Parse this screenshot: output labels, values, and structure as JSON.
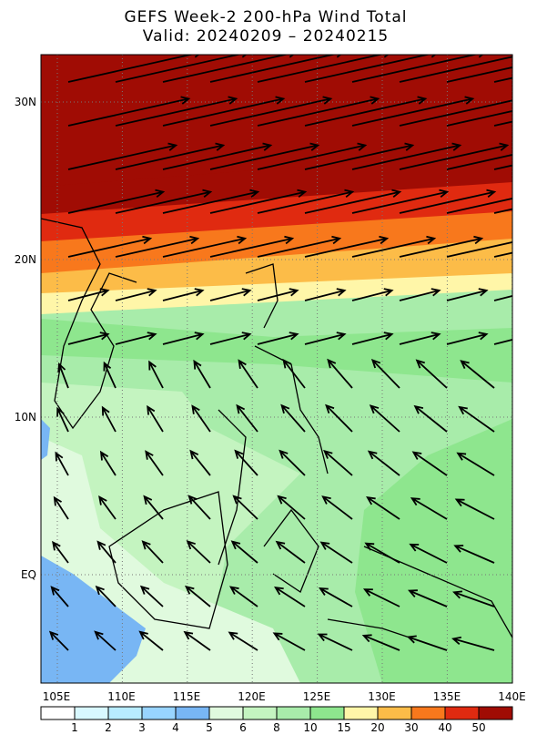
{
  "title": "GEFS Week-2 200-hPa Wind Total",
  "subtitle": "Valid: 20240209 – 20240215",
  "map": {
    "lat_labels": [
      "30N",
      "20N",
      "10N",
      "EQ"
    ],
    "lon_labels": [
      "105E",
      "110E",
      "115E",
      "120E",
      "125E",
      "130E",
      "135E",
      "140E"
    ]
  },
  "colorbar": {
    "labels": [
      1,
      2,
      3,
      4,
      5,
      6,
      8,
      10,
      15,
      20,
      30,
      40,
      50
    ],
    "colors": [
      "#ffffff",
      "#d8f8ff",
      "#b8ecff",
      "#98d4ff",
      "#78b6f4",
      "#e0fade",
      "#c4f4c0",
      "#a8ecaa",
      "#8ee68e",
      "#fff6a8",
      "#fcbc48",
      "#f8781c",
      "#e02a10",
      "#a00c04"
    ]
  }
}
